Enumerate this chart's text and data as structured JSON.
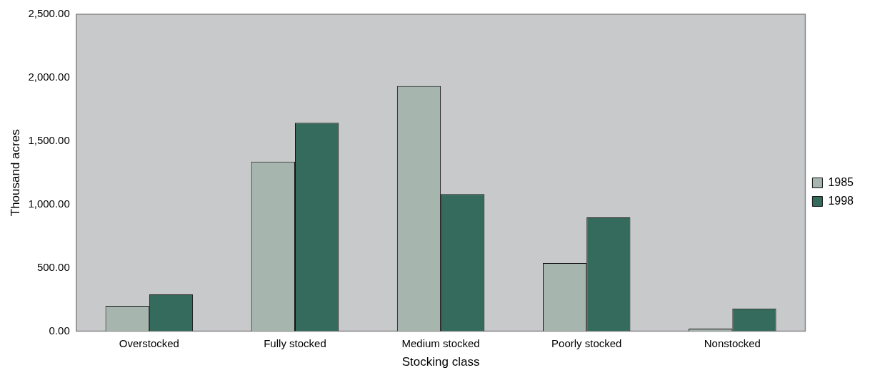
{
  "chart_data": {
    "type": "bar",
    "xlabel": "Stocking class",
    "ylabel": "Thousand acres",
    "categories": [
      "Overstocked",
      "Fully stocked",
      "Medium stocked",
      "Poorly stocked",
      "Nonstocked"
    ],
    "series": [
      {
        "name": "1985",
        "color": "#a6b6ae",
        "values": [
          200,
          1337,
          1933,
          538,
          20
        ]
      },
      {
        "name": "1998",
        "color": "#356b5c",
        "values": [
          290,
          1644,
          1082,
          897,
          179
        ]
      }
    ],
    "ylim": [
      0,
      2500
    ],
    "yticks": [
      {
        "value": 0,
        "label": "0.00"
      },
      {
        "value": 500,
        "label": "500.00"
      },
      {
        "value": 1000,
        "label": "1,000.00"
      },
      {
        "value": 1500,
        "label": "1,500.00"
      },
      {
        "value": 2000,
        "label": "2,000.00"
      },
      {
        "value": 2500,
        "label": "2,500.00"
      }
    ],
    "grid": false,
    "legend": "right"
  }
}
